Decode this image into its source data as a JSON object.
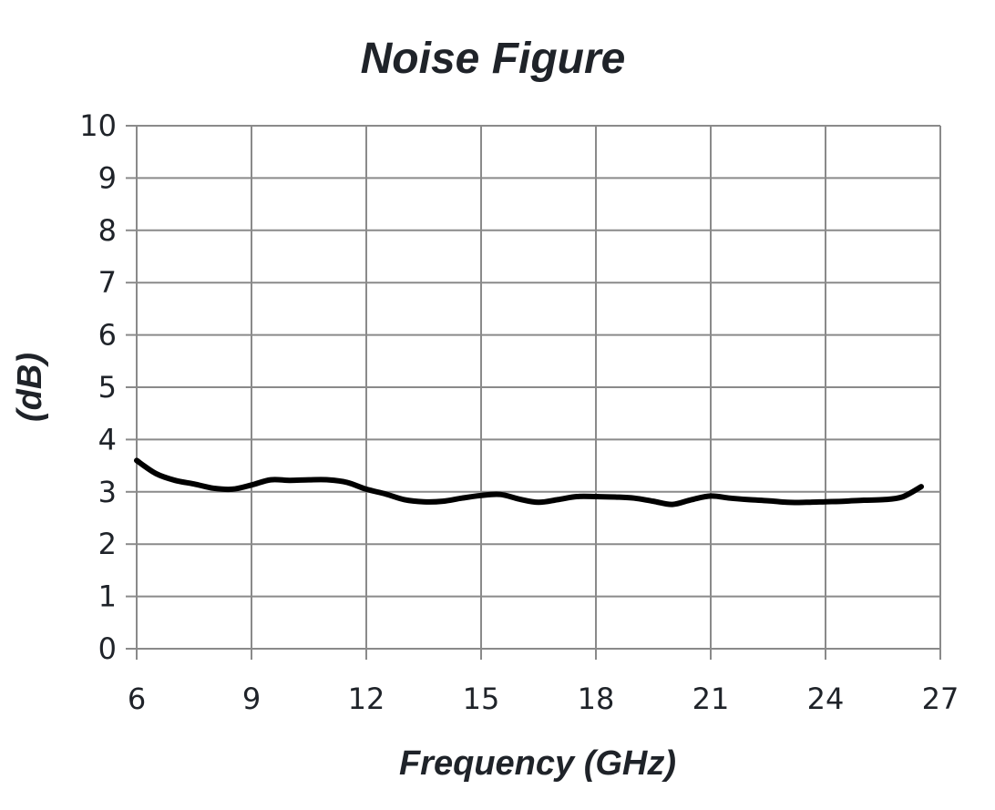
{
  "chart_data": {
    "type": "line",
    "title": "Noise Figure",
    "xlabel": "Frequency (GHz)",
    "ylabel": "(dB)",
    "xlim": [
      6,
      27
    ],
    "ylim": [
      0,
      10
    ],
    "xticks": [
      6,
      9,
      12,
      15,
      18,
      21,
      24,
      27
    ],
    "yticks": [
      0,
      1,
      2,
      3,
      4,
      5,
      6,
      7,
      8,
      9,
      10
    ],
    "grid": true,
    "legend": "none",
    "series": [
      {
        "color": "#000000",
        "x": [
          6.0,
          6.5,
          7.0,
          7.5,
          8.0,
          8.5,
          9.0,
          9.5,
          10.0,
          10.5,
          11.0,
          11.5,
          12.0,
          12.5,
          13.0,
          13.5,
          14.0,
          14.5,
          15.0,
          15.5,
          16.0,
          16.5,
          17.0,
          17.5,
          18.0,
          18.5,
          19.0,
          19.5,
          20.0,
          20.5,
          21.0,
          21.5,
          22.0,
          22.5,
          23.0,
          23.5,
          24.0,
          24.5,
          25.0,
          25.5,
          26.0,
          26.5
        ],
        "y": [
          3.6,
          3.35,
          3.22,
          3.15,
          3.07,
          3.05,
          3.13,
          3.23,
          3.22,
          3.23,
          3.23,
          3.18,
          3.05,
          2.96,
          2.85,
          2.81,
          2.82,
          2.88,
          2.93,
          2.95,
          2.86,
          2.8,
          2.85,
          2.91,
          2.91,
          2.9,
          2.88,
          2.82,
          2.76,
          2.85,
          2.92,
          2.88,
          2.85,
          2.83,
          2.8,
          2.8,
          2.81,
          2.82,
          2.84,
          2.85,
          2.9,
          3.1
        ]
      }
    ]
  }
}
